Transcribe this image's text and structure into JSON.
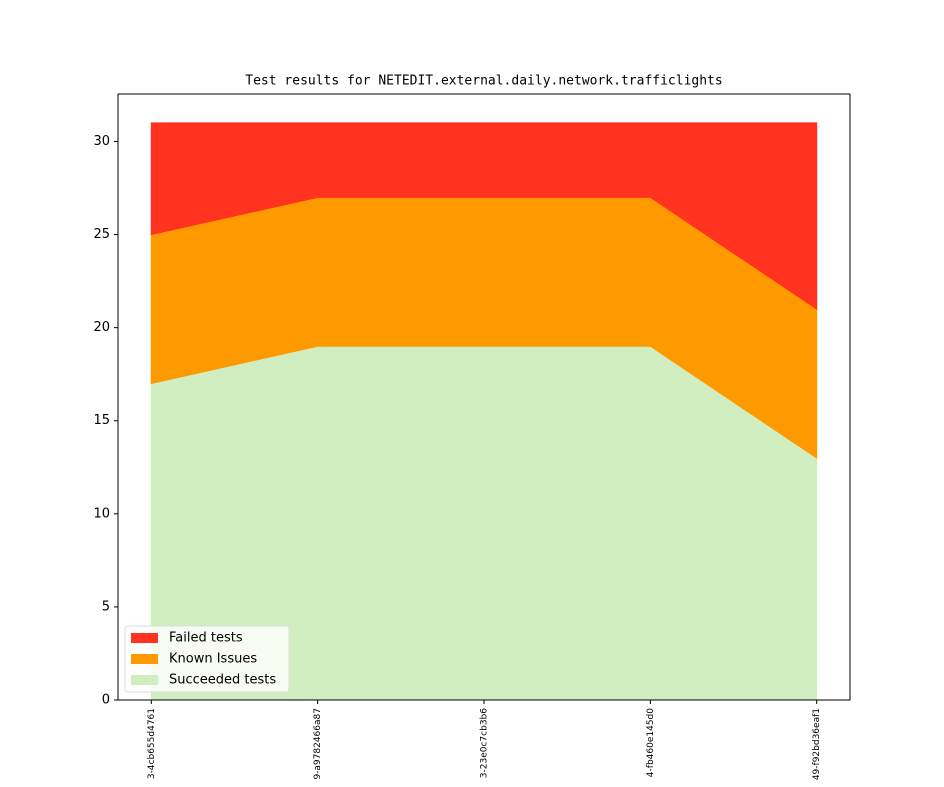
{
  "chart_data": {
    "type": "stackedarea",
    "title": "Test results for NETEDIT.external.daily.network.trafficlights",
    "categories": [
      "3-4cb655d4761",
      "9-a9782466a87",
      "3-23e0c7cb3b6",
      "4-fb460e145d0",
      "49-f92bd36eaf1"
    ],
    "series": [
      {
        "name": "Succeeded tests",
        "color": "#d0eebf",
        "values": [
          17,
          19,
          19,
          19,
          13
        ]
      },
      {
        "name": "Known Issues",
        "color": "#ff9900",
        "values": [
          8,
          8,
          8,
          8,
          8
        ]
      },
      {
        "name": "Failed tests",
        "color": "#ff331f",
        "values": [
          6,
          4,
          4,
          4,
          10
        ]
      }
    ],
    "ylim": [
      0,
      32.55
    ],
    "yticks": [
      0,
      5,
      10,
      15,
      20,
      25,
      30
    ],
    "legend": "lower left"
  }
}
